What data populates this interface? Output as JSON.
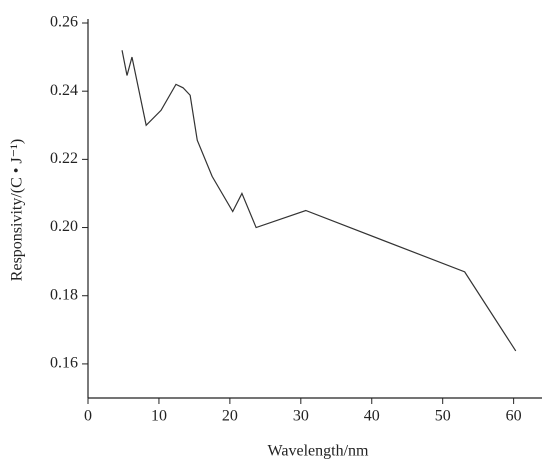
{
  "chart_data": {
    "type": "line",
    "x_label": "Wavelength/nm",
    "y_label": "Responsivity/(C • J⁻¹)",
    "series": [
      {
        "color": "#333333",
        "x": [
          4.8,
          5.5,
          6.2,
          8.2,
          10.3,
          12.4,
          13.4,
          14.4,
          15.4,
          17.5,
          20.4,
          21.7,
          23.7,
          30.7,
          53.1,
          60.3
        ],
        "values": [
          0.252,
          0.2446,
          0.25,
          0.23,
          0.2344,
          0.242,
          0.241,
          0.2388,
          0.2256,
          0.215,
          0.2047,
          0.21,
          0.2,
          0.205,
          0.187,
          0.1638
        ]
      }
    ],
    "xlim": [
      0,
      64
    ],
    "xticks": [
      0,
      10,
      20,
      30,
      40,
      50,
      60
    ],
    "ylim": [
      0.15,
      0.26
    ],
    "yticks": [
      {
        "value": 0.16,
        "label": "0.16"
      },
      {
        "value": 0.18,
        "label": "0.18"
      },
      {
        "value": 0.2,
        "label": "0.20"
      },
      {
        "value": 0.22,
        "label": "0.22"
      },
      {
        "value": 0.24,
        "label": "0.24"
      },
      {
        "value": 0.26,
        "label": "0.26"
      }
    ]
  }
}
